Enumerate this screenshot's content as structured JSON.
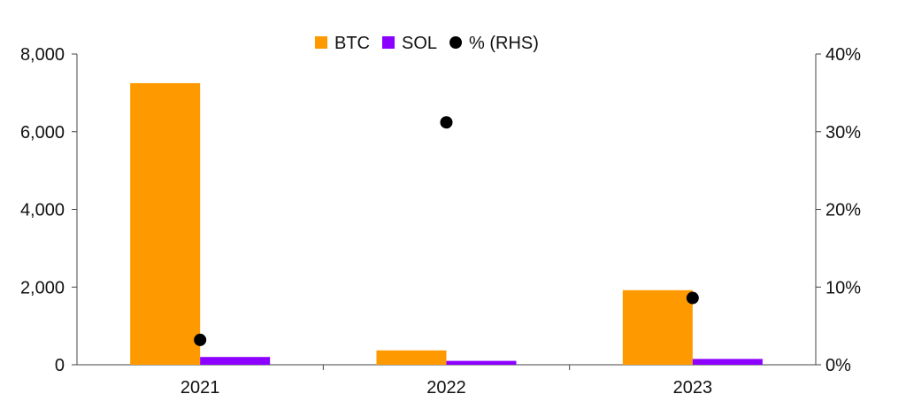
{
  "chart_data": {
    "type": "bar",
    "categories": [
      "2021",
      "2022",
      "2023"
    ],
    "series": [
      {
        "name": "BTC",
        "type": "bar",
        "axis": "left",
        "color": "#FF9900",
        "values": [
          7250,
          370,
          1920
        ]
      },
      {
        "name": "SOL",
        "type": "bar",
        "axis": "left",
        "color": "#8B00FF",
        "values": [
          200,
          100,
          150
        ]
      },
      {
        "name": "% (RHS)",
        "type": "scatter",
        "axis": "right",
        "color": "#000000",
        "values": [
          3.2,
          31.2,
          8.6
        ]
      }
    ],
    "y_left": {
      "range": [
        0,
        8000
      ],
      "ticks": [
        0,
        2000,
        4000,
        6000,
        8000
      ],
      "tick_labels": [
        "0",
        "2,000",
        "4,000",
        "6,000",
        "8,000"
      ]
    },
    "y_right": {
      "range": [
        0,
        40
      ],
      "ticks": [
        0,
        10,
        20,
        30,
        40
      ],
      "tick_labels": [
        "0%",
        "10%",
        "20%",
        "30%",
        "40%"
      ]
    },
    "grid": false,
    "legend_position": "top-center"
  }
}
